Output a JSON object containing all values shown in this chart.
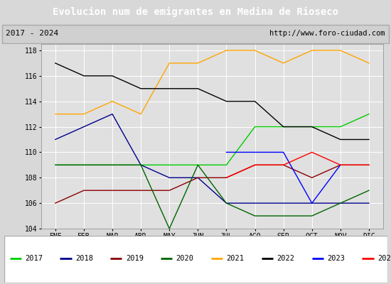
{
  "title": "Evolucion num de emigrantes en Medina de Rioseco",
  "subtitle_left": "2017 - 2024",
  "subtitle_right": "http://www.foro-ciudad.com",
  "months": [
    "ENE",
    "FEB",
    "MAR",
    "ABR",
    "MAY",
    "JUN",
    "JUL",
    "AGO",
    "SEP",
    "OCT",
    "NOV",
    "DIC"
  ],
  "series": {
    "2017": {
      "color": "#00cc00",
      "values": [
        109,
        109,
        109,
        109,
        109,
        109,
        109,
        112,
        112,
        112,
        112,
        113
      ]
    },
    "2018": {
      "color": "#00008B",
      "values": [
        111,
        112,
        113,
        109,
        108,
        108,
        106,
        106,
        106,
        106,
        106,
        106
      ]
    },
    "2019": {
      "color": "#8B0000",
      "values": [
        106,
        107,
        107,
        107,
        107,
        108,
        108,
        109,
        109,
        108,
        109,
        109
      ]
    },
    "2020": {
      "color": "#006400",
      "values": [
        109,
        109,
        109,
        109,
        104,
        109,
        106,
        105,
        105,
        105,
        106,
        107
      ]
    },
    "2021": {
      "color": "#FFA500",
      "values": [
        113,
        113,
        114,
        113,
        117,
        117,
        118,
        118,
        117,
        118,
        118,
        117
      ]
    },
    "2022": {
      "color": "#000000",
      "values": [
        117,
        116,
        116,
        115,
        115,
        115,
        114,
        114,
        112,
        112,
        111,
        111
      ]
    },
    "2023": {
      "color": "#0000FF",
      "values": [
        null,
        null,
        null,
        null,
        null,
        null,
        110,
        110,
        110,
        106,
        109,
        null
      ]
    },
    "2024": {
      "color": "#FF0000",
      "values": [
        null,
        null,
        null,
        null,
        null,
        null,
        108,
        109,
        109,
        110,
        109,
        109
      ]
    }
  },
  "ylim": [
    104,
    118.5
  ],
  "yticks": [
    104,
    106,
    108,
    110,
    112,
    114,
    116,
    118
  ],
  "bg_color": "#d8d8d8",
  "plot_bg_color": "#e0e0e0",
  "title_bg_color": "#4499ee",
  "title_text_color": "#ffffff",
  "header_bg_color": "#d0d0d0",
  "legend_bg_color": "#ffffff"
}
